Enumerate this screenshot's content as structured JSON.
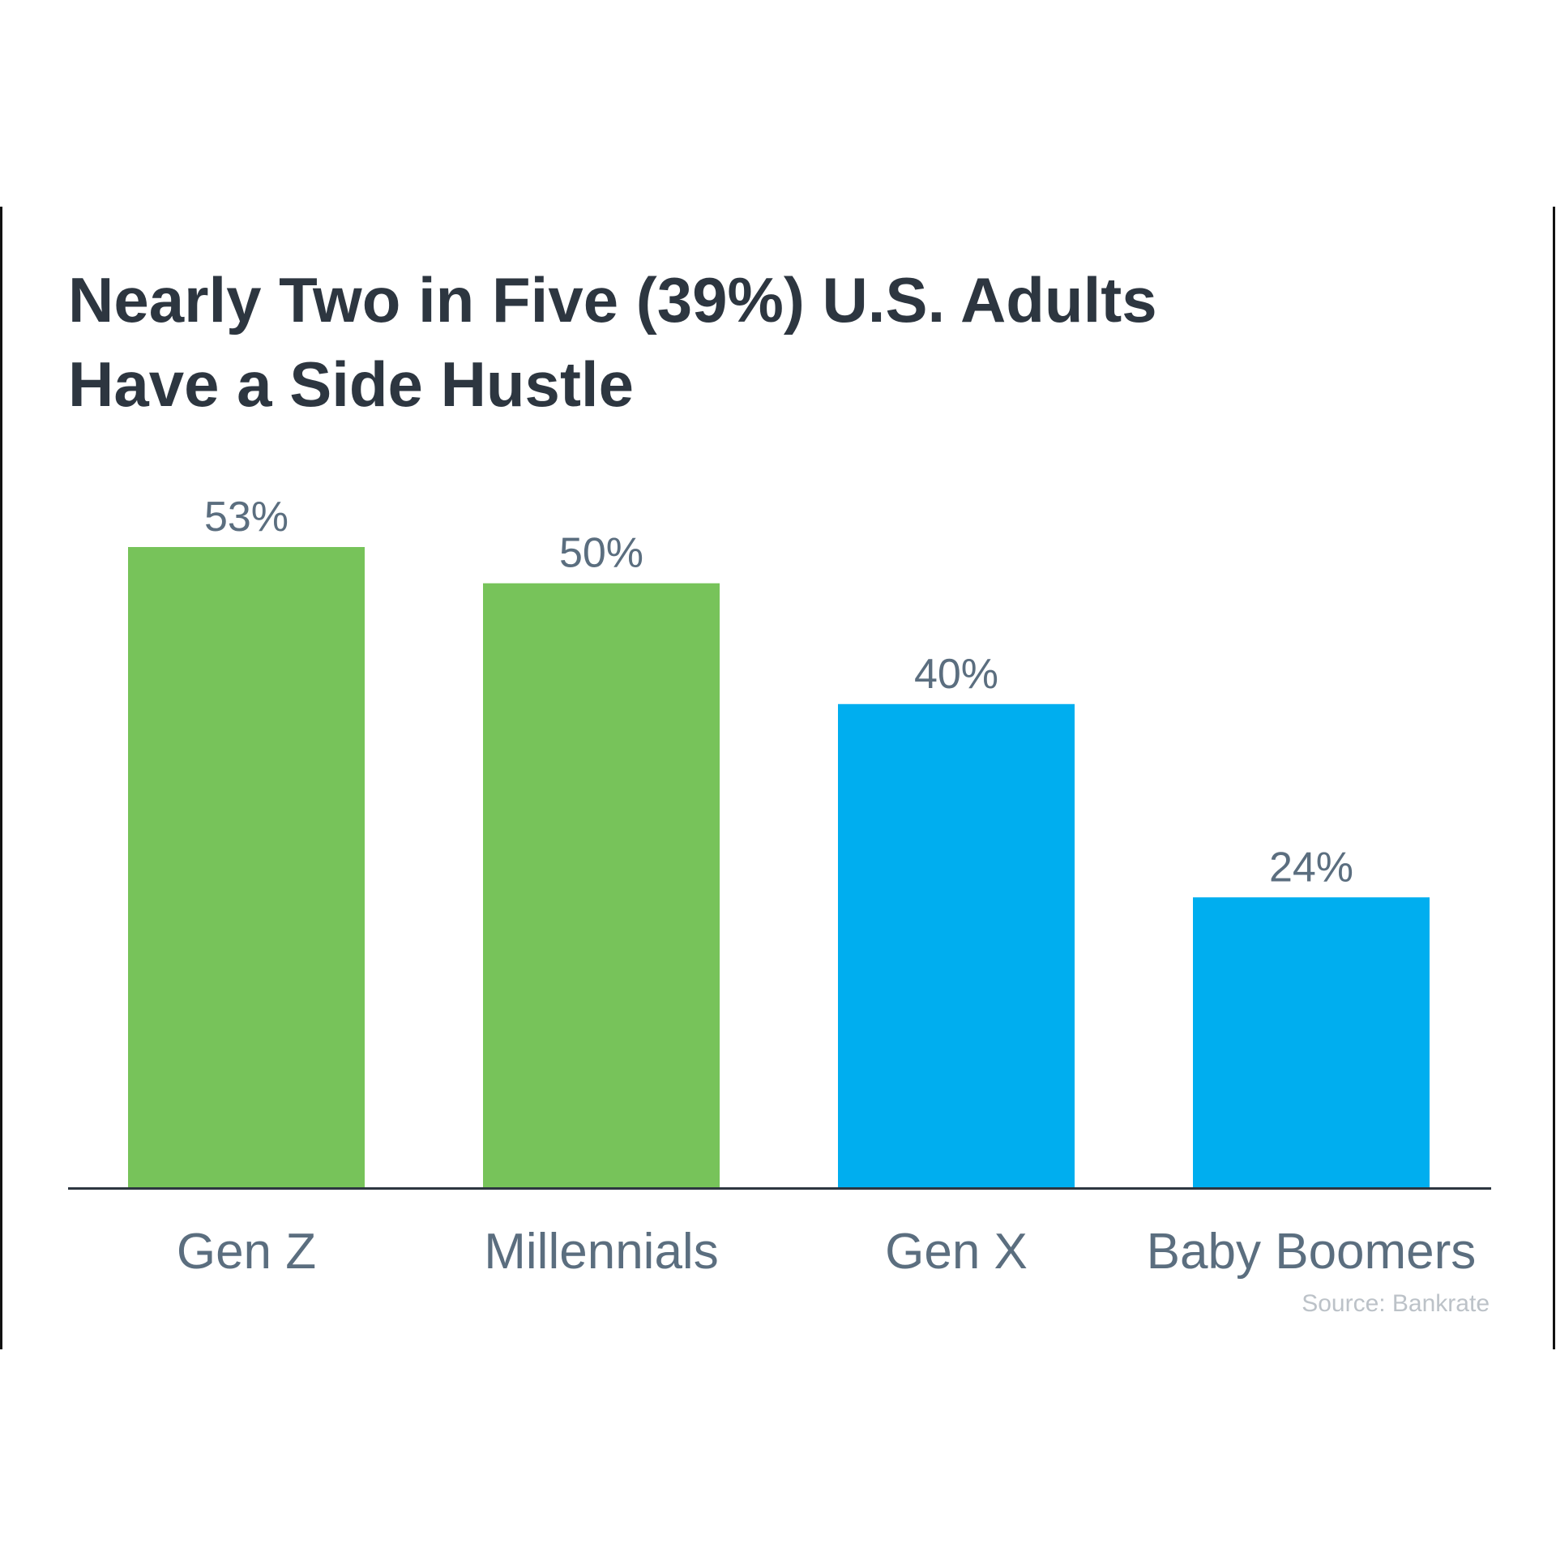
{
  "title_lines": [
    "Nearly Two in Five (39%) U.S. Adults",
    "Have a Side Hustle"
  ],
  "source": "Source: Bankrate",
  "colors": {
    "green": "#77c35a",
    "blue": "#00aeef",
    "title": "#2d3640",
    "label": "#5b6e7f",
    "axis": "#2d3640",
    "source": "#bcc2c8"
  },
  "chart_data": {
    "type": "bar",
    "title": "Nearly Two in Five (39%) U.S. Adults Have a Side Hustle",
    "categories": [
      "Gen Z",
      "Millennials",
      "Gen X",
      "Baby Boomers"
    ],
    "values": [
      53,
      50,
      40,
      24
    ],
    "value_labels": [
      "53%",
      "50%",
      "40%",
      "24%"
    ],
    "bar_colors": [
      "#77c35a",
      "#77c35a",
      "#00aeef",
      "#00aeef"
    ],
    "unit": "%",
    "ylim": [
      0,
      53
    ],
    "grid": false,
    "legend": "none",
    "xlabel": "",
    "ylabel": ""
  }
}
